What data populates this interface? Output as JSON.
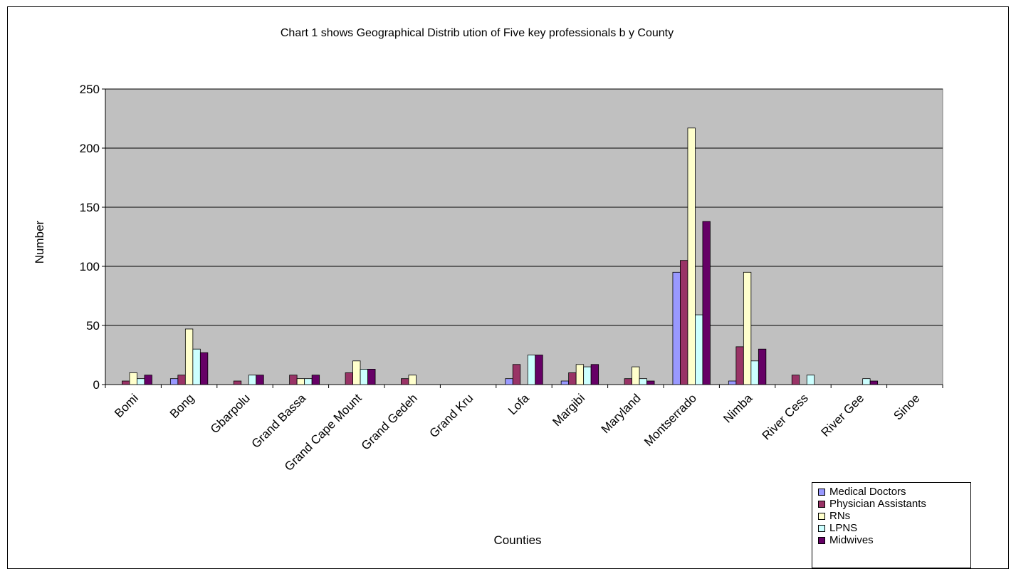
{
  "chart_data": {
    "type": "bar",
    "title": "Chart 1 shows Geographical Distrib ution of Five key professionals b y County",
    "xlabel": "Counties",
    "ylabel": "Number",
    "ylim": [
      0,
      250
    ],
    "yticks": [
      0,
      50,
      100,
      150,
      200,
      250
    ],
    "grid": true,
    "legend_position": "bottom-right",
    "plot_background": "#c0c0c0",
    "categories": [
      "Bomi",
      "Bong",
      "Gbarpolu",
      "Grand Bassa",
      "Grand Cape Mount",
      "Grand Gedeh",
      "Grand Kru",
      "Lofa",
      "Margibi",
      "Maryland",
      "Montserrado",
      "Nimba",
      "River Cess",
      "River Gee",
      "Sinoe"
    ],
    "series": [
      {
        "name": "Medical Doctors",
        "color": "#9999ff",
        "values": [
          0,
          5,
          0,
          0,
          0,
          0,
          0,
          5,
          3,
          0,
          95,
          3,
          0,
          0,
          0
        ]
      },
      {
        "name": "Physician Assistants",
        "color": "#993366",
        "values": [
          3,
          8,
          3,
          8,
          10,
          5,
          0,
          17,
          10,
          5,
          105,
          32,
          8,
          0,
          0
        ]
      },
      {
        "name": "RNs",
        "color": "#ffffcc",
        "values": [
          10,
          47,
          0,
          5,
          20,
          8,
          0,
          0,
          17,
          15,
          217,
          95,
          0,
          0,
          0
        ]
      },
      {
        "name": "LPNS",
        "color": "#ccffff",
        "values": [
          5,
          30,
          8,
          5,
          13,
          0,
          0,
          25,
          15,
          5,
          59,
          20,
          8,
          5,
          0
        ]
      },
      {
        "name": "Midwives",
        "color": "#660066",
        "values": [
          8,
          27,
          8,
          8,
          13,
          0,
          0,
          25,
          17,
          3,
          138,
          30,
          0,
          3,
          0
        ]
      }
    ]
  }
}
